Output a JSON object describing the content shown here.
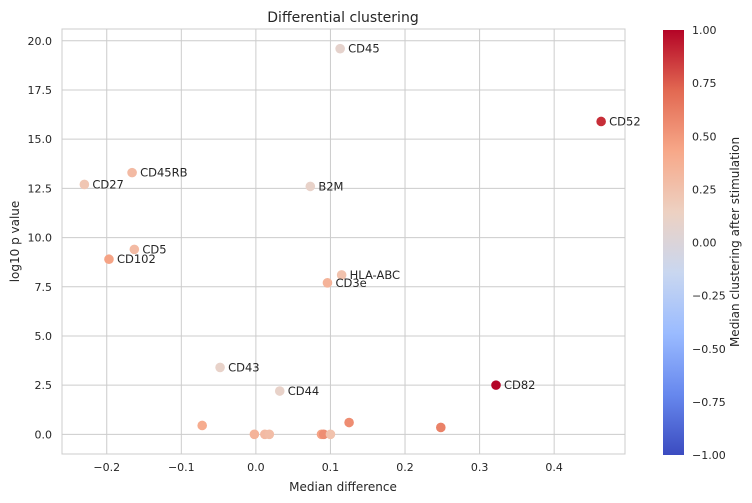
{
  "chart_data": {
    "type": "scatter",
    "title": "Differential clustering",
    "xlabel": "Median difference",
    "ylabel": "log10 p value",
    "xlim": [
      -0.26,
      0.495
    ],
    "ylim": [
      -1.0,
      20.6
    ],
    "xticks": [
      -0.2,
      -0.1,
      0.0,
      0.1,
      0.2,
      0.3,
      0.4
    ],
    "xtick_labels": [
      "−0.2",
      "−0.1",
      "0.0",
      "0.1",
      "0.2",
      "0.3",
      "0.4"
    ],
    "yticks": [
      0.0,
      2.5,
      5.0,
      7.5,
      10.0,
      12.5,
      15.0,
      17.5,
      20.0
    ],
    "ytick_labels": [
      "0.0",
      "2.5",
      "5.0",
      "7.5",
      "10.0",
      "12.5",
      "15.0",
      "17.5",
      "20.0"
    ],
    "grid": true,
    "colormap": "coolwarm",
    "colorbar": {
      "label": "Median clustering after stimulation",
      "range": [
        -1.0,
        1.0
      ],
      "ticks": [
        1.0,
        0.75,
        0.5,
        0.25,
        0.0,
        -0.25,
        -0.5,
        -0.75,
        -1.0
      ],
      "tick_labels": [
        "1.00",
        "0.75",
        "0.50",
        "0.25",
        "0.00",
        "−0.25",
        "−0.50",
        "−0.75",
        "−1.00"
      ],
      "colors": [
        "#3b4cc0",
        "#6788ee",
        "#9abbff",
        "#c9d7f0",
        "#edd1c2",
        "#f7a889",
        "#e26952",
        "#b40426"
      ]
    },
    "points": [
      {
        "label": "CD45",
        "x": 0.113,
        "y": 19.6,
        "c": 0.08
      },
      {
        "label": "CD52",
        "x": 0.463,
        "y": 15.9,
        "c": 0.88
      },
      {
        "label": "CD45RB",
        "x": -0.166,
        "y": 13.3,
        "c": 0.3
      },
      {
        "label": "CD27",
        "x": -0.23,
        "y": 12.7,
        "c": 0.22
      },
      {
        "label": "B2M",
        "x": 0.073,
        "y": 12.6,
        "c": 0.1
      },
      {
        "label": "CD5",
        "x": -0.163,
        "y": 9.4,
        "c": 0.3
      },
      {
        "label": "CD102",
        "x": -0.197,
        "y": 8.9,
        "c": 0.45
      },
      {
        "label": "HLA-ABC",
        "x": 0.115,
        "y": 8.1,
        "c": 0.25
      },
      {
        "label": "CD3e",
        "x": 0.096,
        "y": 7.7,
        "c": 0.35
      },
      {
        "label": "CD43",
        "x": -0.048,
        "y": 3.4,
        "c": 0.1
      },
      {
        "label": "CD44",
        "x": 0.032,
        "y": 2.2,
        "c": 0.1
      },
      {
        "label": "CD82",
        "x": 0.322,
        "y": 2.5,
        "c": 1.0
      },
      {
        "label": "",
        "x": -0.072,
        "y": 0.45,
        "c": 0.4
      },
      {
        "label": "",
        "x": -0.002,
        "y": 0.0,
        "c": 0.35
      },
      {
        "label": "",
        "x": 0.012,
        "y": 0.0,
        "c": 0.3
      },
      {
        "label": "",
        "x": 0.018,
        "y": 0.0,
        "c": 0.28
      },
      {
        "label": "",
        "x": 0.088,
        "y": 0.0,
        "c": 0.45
      },
      {
        "label": "",
        "x": 0.091,
        "y": 0.0,
        "c": 0.55
      },
      {
        "label": "",
        "x": 0.1,
        "y": 0.0,
        "c": 0.25
      },
      {
        "label": "",
        "x": 0.125,
        "y": 0.6,
        "c": 0.55
      },
      {
        "label": "",
        "x": 0.248,
        "y": 0.35,
        "c": 0.6
      }
    ]
  }
}
